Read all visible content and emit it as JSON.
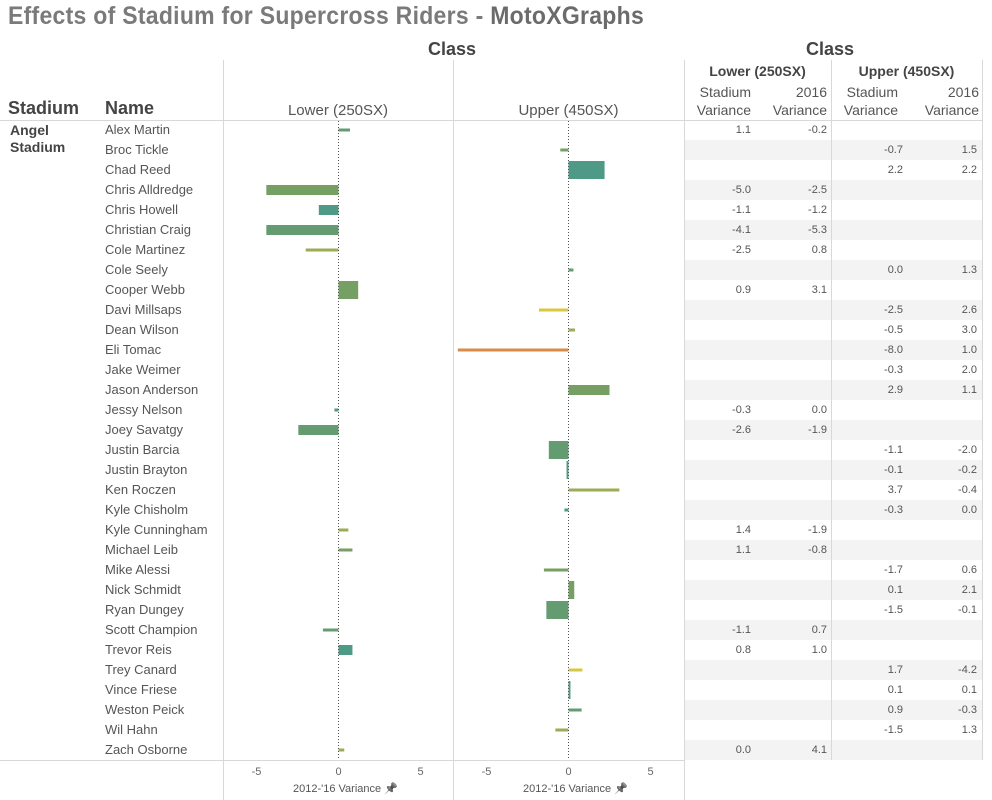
{
  "title": "Effects of Stadium for Supercross Riders - ",
  "brand": "MotoXGraphs",
  "class_header": "Class",
  "stadium_header": "Stadium",
  "name_header": "Name",
  "stadium": "Angel Stadium",
  "classes": [
    "Lower (250SX)",
    "Upper (450SX)"
  ],
  "table_cols": {
    "stadium": "Stadium Variance",
    "y2016": "2016 Variance"
  },
  "chart_data": {
    "type": "bar",
    "orientation": "horizontal",
    "xlabel": "2012-'16 Variance",
    "xlim": [
      -7,
      7
    ],
    "ticks": [
      "-5",
      "0",
      "5"
    ],
    "tick_values": [
      -5,
      0,
      5
    ],
    "colors": {
      "teal": "#4f9a87",
      "green": "#76a063",
      "midgreen": "#659b70",
      "olive": "#9aad55",
      "yellow": "#d8c740",
      "orange": "#d98b4a"
    },
    "rows": [
      {
        "name": "Alex Martin",
        "cls": 0,
        "bar": 0.7,
        "size": 1,
        "color": "midgreen",
        "stadium_var": "1.1",
        "var2016": "-0.2"
      },
      {
        "name": "Broc Tickle",
        "cls": 1,
        "bar": -0.5,
        "size": 1,
        "color": "green",
        "stadium_var": "-0.7",
        "var2016": "1.5"
      },
      {
        "name": "Chad Reed",
        "cls": 1,
        "bar": 2.2,
        "size": 3,
        "color": "teal",
        "stadium_var": "2.2",
        "var2016": "2.2"
      },
      {
        "name": "Chris Alldredge",
        "cls": 0,
        "bar": -4.4,
        "size": 2,
        "color": "green",
        "stadium_var": "-5.0",
        "var2016": "-2.5"
      },
      {
        "name": "Chris Howell",
        "cls": 0,
        "bar": -1.2,
        "size": 2,
        "color": "teal",
        "stadium_var": "-1.1",
        "var2016": "-1.2"
      },
      {
        "name": "Christian Craig",
        "cls": 0,
        "bar": -4.4,
        "size": 2,
        "color": "midgreen",
        "stadium_var": "-4.1",
        "var2016": "-5.3"
      },
      {
        "name": "Cole Martinez",
        "cls": 0,
        "bar": -2.0,
        "size": 1,
        "color": "olive",
        "stadium_var": "-2.5",
        "var2016": "0.8"
      },
      {
        "name": "Cole Seely",
        "cls": 1,
        "bar": 0.3,
        "size": 1,
        "color": "midgreen",
        "stadium_var": "0.0",
        "var2016": "1.3"
      },
      {
        "name": "Cooper Webb",
        "cls": 0,
        "bar": 1.2,
        "size": 3,
        "color": "green",
        "stadium_var": "0.9",
        "var2016": "3.1"
      },
      {
        "name": "Davi Millsaps",
        "cls": 1,
        "bar": -1.8,
        "size": 1,
        "color": "yellow",
        "stadium_var": "-2.5",
        "var2016": "2.6"
      },
      {
        "name": "Dean Wilson",
        "cls": 1,
        "bar": 0.4,
        "size": 1,
        "color": "olive",
        "stadium_var": "-0.5",
        "var2016": "3.0"
      },
      {
        "name": "Eli Tomac",
        "cls": 1,
        "bar": -6.75,
        "size": 1,
        "color": "orange",
        "stadium_var": "-8.0",
        "var2016": "1.0"
      },
      {
        "name": "Jake Weimer",
        "cls": 1,
        "bar": 0.05,
        "size": 1,
        "color": "green",
        "stadium_var": "-0.3",
        "var2016": "2.0"
      },
      {
        "name": "Jason Anderson",
        "cls": 1,
        "bar": 2.5,
        "size": 2,
        "color": "green",
        "stadium_var": "2.9",
        "var2016": "1.1"
      },
      {
        "name": "Jessy Nelson",
        "cls": 0,
        "bar": -0.25,
        "size": 1,
        "color": "teal",
        "stadium_var": "-0.3",
        "var2016": "0.0"
      },
      {
        "name": "Joey Savatgy",
        "cls": 0,
        "bar": -2.45,
        "size": 2,
        "color": "midgreen",
        "stadium_var": "-2.6",
        "var2016": "-1.9"
      },
      {
        "name": "Justin Barcia",
        "cls": 1,
        "bar": -1.2,
        "size": 3,
        "color": "midgreen",
        "stadium_var": "-1.1",
        "var2016": "-2.0"
      },
      {
        "name": "Justin Brayton",
        "cls": 1,
        "bar": -0.12,
        "size": 3,
        "color": "teal",
        "stadium_var": "-0.1",
        "var2016": "-0.2"
      },
      {
        "name": "Ken Roczen",
        "cls": 1,
        "bar": 3.1,
        "size": 1,
        "color": "olive",
        "stadium_var": "3.7",
        "var2016": "-0.4"
      },
      {
        "name": "Kyle Chisholm",
        "cls": 1,
        "bar": -0.25,
        "size": 1,
        "color": "teal",
        "stadium_var": "-0.3",
        "var2016": "0.0"
      },
      {
        "name": "Kyle Cunningham",
        "cls": 0,
        "bar": 0.6,
        "size": 1,
        "color": "olive",
        "stadium_var": "1.4",
        "var2016": "-1.9"
      },
      {
        "name": "Michael Leib",
        "cls": 0,
        "bar": 0.85,
        "size": 1,
        "color": "green",
        "stadium_var": "1.1",
        "var2016": "-0.8"
      },
      {
        "name": "Mike Alessi",
        "cls": 1,
        "bar": -1.5,
        "size": 1,
        "color": "green",
        "stadium_var": "-1.7",
        "var2016": "0.6"
      },
      {
        "name": "Nick Schmidt",
        "cls": 1,
        "bar": 0.35,
        "size": 3,
        "color": "green",
        "stadium_var": "0.1",
        "var2016": "2.1"
      },
      {
        "name": "Ryan Dungey",
        "cls": 1,
        "bar": -1.35,
        "size": 3,
        "color": "midgreen",
        "stadium_var": "-1.5",
        "var2016": "-0.1"
      },
      {
        "name": "Scott Champion",
        "cls": 0,
        "bar": -0.95,
        "size": 1,
        "color": "midgreen",
        "stadium_var": "-1.1",
        "var2016": "0.7"
      },
      {
        "name": "Trevor Reis",
        "cls": 0,
        "bar": 0.85,
        "size": 2,
        "color": "teal",
        "stadium_var": "0.8",
        "var2016": "1.0"
      },
      {
        "name": "Trey Canard",
        "cls": 1,
        "bar": 0.85,
        "size": 1,
        "color": "yellow",
        "stadium_var": "1.7",
        "var2016": "-4.2"
      },
      {
        "name": "Vince Friese",
        "cls": 1,
        "bar": 0.12,
        "size": 3,
        "color": "teal",
        "stadium_var": "0.1",
        "var2016": "0.1"
      },
      {
        "name": "Weston Peick",
        "cls": 1,
        "bar": 0.8,
        "size": 1,
        "color": "midgreen",
        "stadium_var": "0.9",
        "var2016": "-0.3"
      },
      {
        "name": "Wil Hahn",
        "cls": 1,
        "bar": -0.8,
        "size": 1,
        "color": "olive",
        "stadium_var": "-1.5",
        "var2016": "1.3"
      },
      {
        "name": "Zach Osborne",
        "cls": 0,
        "bar": 0.35,
        "size": 1,
        "color": "olive",
        "stadium_var": "0.0",
        "var2016": "4.1"
      }
    ]
  }
}
